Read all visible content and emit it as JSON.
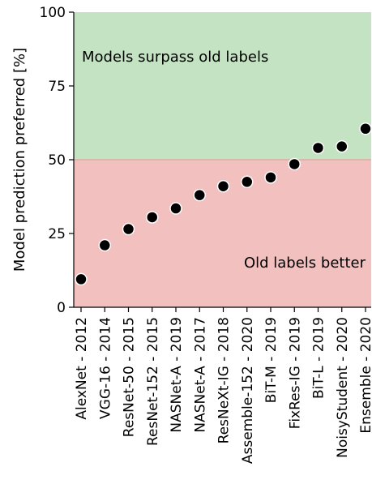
{
  "chart_data": {
    "type": "scatter",
    "title": "",
    "xlabel": "",
    "ylabel": "Model prediction preferred [%]",
    "ylim": [
      0,
      100
    ],
    "yticks": [
      0,
      25,
      50,
      75,
      100
    ],
    "grid": false,
    "legend": "none",
    "categories": [
      "AlexNet - 2012",
      "VGG-16 - 2014",
      "ResNet-50 - 2015",
      "ResNet-152 - 2015",
      "NASNet-A - 2019",
      "NASNet-A - 2017",
      "ResNeXt-IG - 2018",
      "Assemble-152 - 2020",
      "BiT-M - 2019",
      "FixRes-IG - 2019",
      "BiT-L - 2019",
      "NoisyStudent - 2020",
      "Ensemble - 2020"
    ],
    "values": [
      9.5,
      21,
      26.5,
      30.5,
      33.5,
      38,
      41,
      42.5,
      44,
      48.5,
      54,
      54.5,
      60.5
    ],
    "regions": [
      {
        "label": "Models surpass old labels",
        "from": 50,
        "to": 100,
        "color": "#c3e3c3"
      },
      {
        "label": "Old labels better",
        "from": 0,
        "to": 50,
        "color": "#f3c0c0"
      }
    ],
    "threshold": 50,
    "colors": {
      "point_fill": "#000000",
      "point_stroke": "#ffffff",
      "threshold_line": "#e8a0a0",
      "axis": "#000000"
    }
  }
}
